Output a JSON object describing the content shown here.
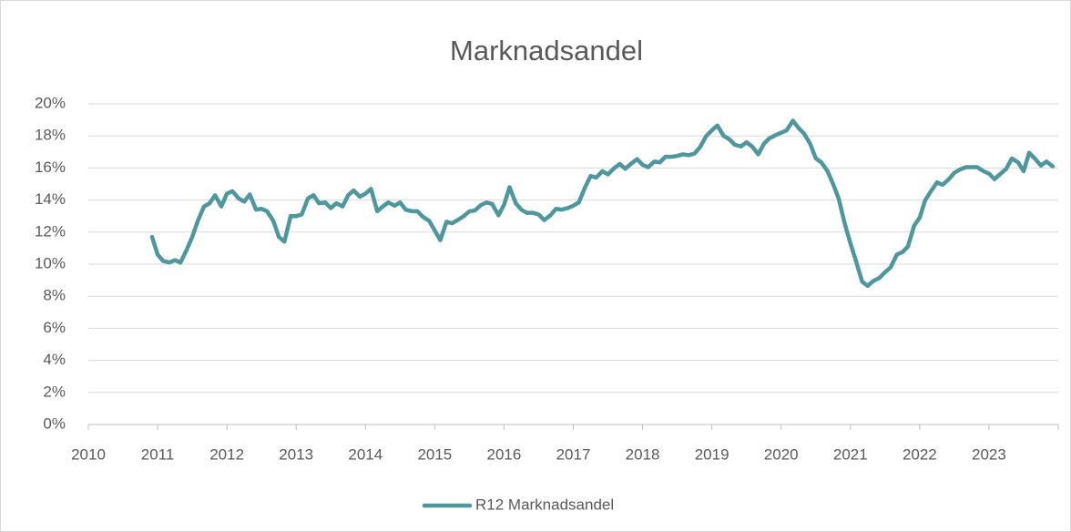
{
  "chart_data": {
    "type": "line",
    "title": "Marknadsandel",
    "x": [
      2010.92,
      2011,
      2011.08,
      2011.17,
      2011.25,
      2011.33,
      2011.42,
      2011.5,
      2011.58,
      2011.67,
      2011.75,
      2011.83,
      2011.92,
      2012,
      2012.08,
      2012.17,
      2012.25,
      2012.33,
      2012.42,
      2012.5,
      2012.58,
      2012.67,
      2012.75,
      2012.83,
      2012.92,
      2013,
      2013.08,
      2013.17,
      2013.25,
      2013.33,
      2013.42,
      2013.5,
      2013.58,
      2013.67,
      2013.75,
      2013.83,
      2013.92,
      2014,
      2014.08,
      2014.17,
      2014.25,
      2014.33,
      2014.42,
      2014.5,
      2014.58,
      2014.67,
      2014.75,
      2014.83,
      2014.92,
      2015,
      2015.08,
      2015.17,
      2015.25,
      2015.33,
      2015.42,
      2015.5,
      2015.58,
      2015.67,
      2015.75,
      2015.83,
      2015.92,
      2016,
      2016.08,
      2016.17,
      2016.25,
      2016.33,
      2016.42,
      2016.5,
      2016.58,
      2016.67,
      2016.75,
      2016.83,
      2016.92,
      2017,
      2017.08,
      2017.17,
      2017.25,
      2017.33,
      2017.42,
      2017.5,
      2017.58,
      2017.67,
      2017.75,
      2017.83,
      2017.92,
      2018,
      2018.08,
      2018.17,
      2018.25,
      2018.33,
      2018.42,
      2018.5,
      2018.58,
      2018.67,
      2018.75,
      2018.83,
      2018.92,
      2019,
      2019.08,
      2019.17,
      2019.25,
      2019.33,
      2019.42,
      2019.5,
      2019.58,
      2019.67,
      2019.75,
      2019.83,
      2019.92,
      2020,
      2020.08,
      2020.17,
      2020.25,
      2020.33,
      2020.42,
      2020.5,
      2020.58,
      2020.67,
      2020.75,
      2020.83,
      2020.92,
      2021,
      2021.08,
      2021.17,
      2021.25,
      2021.33,
      2021.42,
      2021.5,
      2021.58,
      2021.67,
      2021.75,
      2021.83,
      2021.92,
      2022,
      2022.08,
      2022.17,
      2022.25,
      2022.33,
      2022.42,
      2022.5,
      2022.58,
      2022.67,
      2022.75,
      2022.83,
      2022.92,
      2023,
      2023.08,
      2023.17,
      2023.25,
      2023.33,
      2023.42,
      2023.5,
      2023.58,
      2023.67,
      2023.75,
      2023.83,
      2023.92
    ],
    "series": [
      {
        "name": "R12 Marknadsandel",
        "color": "#4e979e",
        "values": [
          11.7,
          10.6,
          10.2,
          10.1,
          10.25,
          10.1,
          10.9,
          11.7,
          12.7,
          13.6,
          13.8,
          14.3,
          13.6,
          14.4,
          14.55,
          14.1,
          13.9,
          14.35,
          13.4,
          13.45,
          13.3,
          12.7,
          11.7,
          11.4,
          13.0,
          13.0,
          13.1,
          14.1,
          14.3,
          13.8,
          13.85,
          13.5,
          13.8,
          13.6,
          14.3,
          14.6,
          14.2,
          14.4,
          14.7,
          13.3,
          13.6,
          13.85,
          13.65,
          13.85,
          13.4,
          13.3,
          13.3,
          12.95,
          12.7,
          12.1,
          11.5,
          12.65,
          12.55,
          12.75,
          13.0,
          13.3,
          13.35,
          13.7,
          13.85,
          13.75,
          13.05,
          13.7,
          14.8,
          13.8,
          13.4,
          13.2,
          13.2,
          13.1,
          12.75,
          13.05,
          13.45,
          13.4,
          13.5,
          13.65,
          13.85,
          14.8,
          15.5,
          15.4,
          15.8,
          15.6,
          15.95,
          16.25,
          15.95,
          16.25,
          16.55,
          16.2,
          16.05,
          16.4,
          16.35,
          16.7,
          16.7,
          16.75,
          16.85,
          16.8,
          16.9,
          17.3,
          18.0,
          18.35,
          18.65,
          18.0,
          17.8,
          17.45,
          17.35,
          17.6,
          17.35,
          16.85,
          17.5,
          17.85,
          18.05,
          18.2,
          18.35,
          18.95,
          18.5,
          18.15,
          17.5,
          16.6,
          16.35,
          15.8,
          15.0,
          14.1,
          12.5,
          11.3,
          10.2,
          8.9,
          8.65,
          8.95,
          9.15,
          9.5,
          9.8,
          10.6,
          10.75,
          11.1,
          12.4,
          12.9,
          14.0,
          14.6,
          15.1,
          14.95,
          15.3,
          15.7,
          15.9,
          16.05,
          16.05,
          16.05,
          15.8,
          15.65,
          15.3,
          15.65,
          15.95,
          16.6,
          16.35,
          15.8,
          16.95,
          16.55,
          16.15,
          16.4,
          16.1
        ]
      }
    ],
    "xlim": [
      2010,
      2024
    ],
    "xticks": [
      2010,
      2011,
      2012,
      2013,
      2014,
      2015,
      2016,
      2017,
      2018,
      2019,
      2020,
      2021,
      2022,
      2023
    ],
    "ylim": [
      0,
      20
    ],
    "yticks": [
      {
        "value": 0,
        "label": "0%"
      },
      {
        "value": 2,
        "label": "2%"
      },
      {
        "value": 4,
        "label": "4%"
      },
      {
        "value": 6,
        "label": "6%"
      },
      {
        "value": 8,
        "label": "8%"
      },
      {
        "value": 10,
        "label": "10%"
      },
      {
        "value": 12,
        "label": "12%"
      },
      {
        "value": 14,
        "label": "14%"
      },
      {
        "value": 16,
        "label": "16%"
      },
      {
        "value": 18,
        "label": "18%"
      },
      {
        "value": 20,
        "label": "20%"
      }
    ],
    "grid": true,
    "legend": "bottom"
  }
}
